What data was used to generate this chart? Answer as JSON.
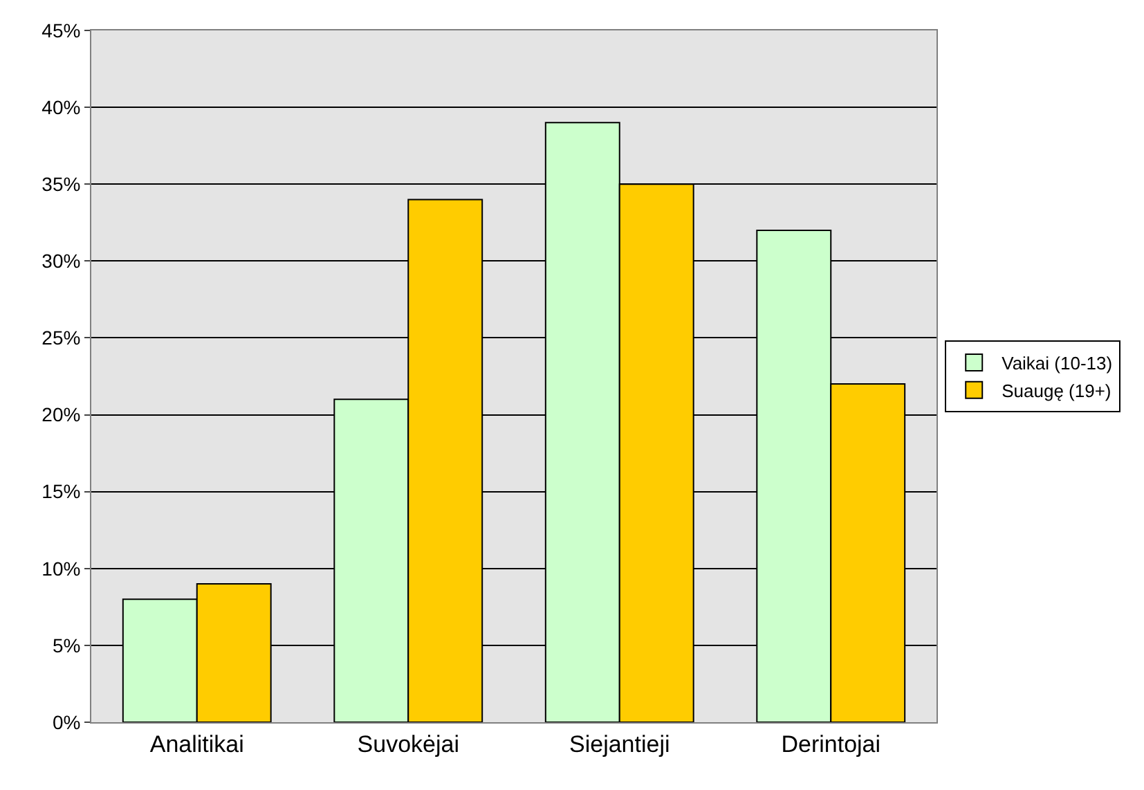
{
  "chart_data": {
    "type": "bar",
    "categories": [
      "Analitikai",
      "Suvokėjai",
      "Siejantieji",
      "Derintojai"
    ],
    "series": [
      {
        "name": "Vaikai (10-13)",
        "color": "#ccffcc",
        "values": [
          8,
          21,
          39,
          32
        ]
      },
      {
        "name": "Suaugę (19+)",
        "color": "#ffcc00",
        "values": [
          9,
          34,
          35,
          22
        ]
      }
    ],
    "ylim": [
      0,
      45
    ],
    "yticks": [
      {
        "value": 0,
        "label": "0%"
      },
      {
        "value": 5,
        "label": "5%"
      },
      {
        "value": 10,
        "label": "10%"
      },
      {
        "value": 15,
        "label": "15%"
      },
      {
        "value": 20,
        "label": "20%"
      },
      {
        "value": 25,
        "label": "25%"
      },
      {
        "value": 30,
        "label": "30%"
      },
      {
        "value": 35,
        "label": "35%"
      },
      {
        "value": 40,
        "label": "40%"
      },
      {
        "value": 45,
        "label": "45%"
      }
    ],
    "grid": "y",
    "legend": "right"
  }
}
